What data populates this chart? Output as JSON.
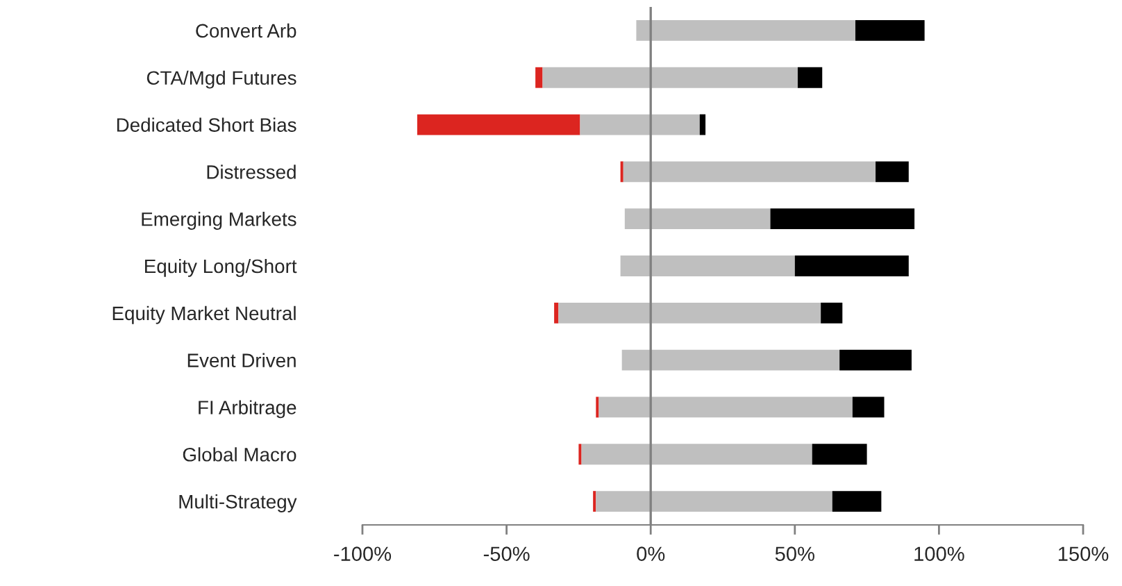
{
  "chart_data": {
    "type": "bar",
    "orientation": "horizontal",
    "categories": [
      "Convert Arb",
      "CTA/Mgd Futures",
      "Dedicated Short Bias",
      "Distressed",
      "Emerging Markets",
      "Equity Long/Short",
      "Equity Market Neutral",
      "Event Driven",
      "FI Arbitrage",
      "Global Macro",
      "Multi-Strategy"
    ],
    "series": [
      {
        "color": "#dc2520",
        "base": [
          null,
          -40,
          -81,
          -10.5,
          null,
          null,
          -33.5,
          null,
          -19,
          -25,
          -20
        ],
        "values": [
          null,
          2.5,
          56.5,
          1,
          null,
          null,
          1.5,
          null,
          1,
          1,
          1
        ]
      },
      {
        "color": "#bfbfbf",
        "base": [
          -5,
          -37.5,
          -24.5,
          -9.5,
          -9,
          -10.5,
          -32,
          -10,
          -18,
          -24,
          -19
        ],
        "values": [
          76,
          88.5,
          41.5,
          87.5,
          50.5,
          60.5,
          91,
          75.5,
          88,
          80,
          82
        ]
      },
      {
        "color": "#000000",
        "base": [
          71,
          51,
          17,
          78,
          41.5,
          50,
          59,
          65.5,
          70,
          56,
          63
        ],
        "values": [
          24,
          8.5,
          2,
          11.5,
          50,
          39.5,
          7.5,
          25,
          11,
          19,
          17
        ]
      }
    ],
    "xlim": [
      -100,
      150
    ],
    "xticks": [
      {
        "value": -100,
        "label": "-100%"
      },
      {
        "value": -50,
        "label": "-50%"
      },
      {
        "value": 0,
        "label": "0%"
      },
      {
        "value": 50,
        "label": "50%"
      },
      {
        "value": 100,
        "label": "100%"
      },
      {
        "value": 150,
        "label": "150%"
      }
    ],
    "ref_lines": [
      {
        "axis": "x",
        "value": 0,
        "color": "#808080"
      }
    ],
    "legend": false
  }
}
